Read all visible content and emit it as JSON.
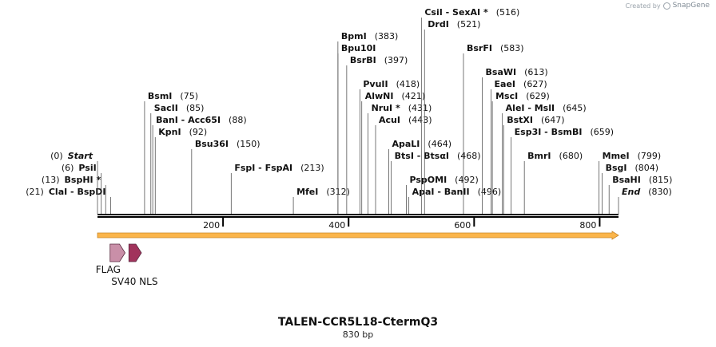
{
  "credit": {
    "prefix": "Created by",
    "brand": "SnapGene"
  },
  "title": "TALEN-CCR5L18-CtermQ3",
  "length_label": "830 bp",
  "sequence_length": 830,
  "ruler_ticks": [
    200,
    400,
    600,
    800
  ],
  "colors": {
    "orf_fill": "#fbb54a",
    "flag_fill": "#c98fa8",
    "sv40_fill": "#a1335c",
    "line": "#000000"
  },
  "sites": [
    {
      "name": "ClaI",
      "pos": 21,
      "sep": " - ",
      "name2": "BspDI",
      "paren_pos": "(21)",
      "side": "left",
      "row": 0
    },
    {
      "name": "BspHI *",
      "pos": 13,
      "paren_pos": "(13)",
      "side": "left",
      "row": 1
    },
    {
      "name": "PsiI",
      "pos": 6,
      "paren_pos": "(6)",
      "side": "left",
      "row": 2
    },
    {
      "name": "Start",
      "pos": 0,
      "paren_pos": "(0)",
      "side": "left",
      "row": 3,
      "italic": true
    },
    {
      "name": "BsmI",
      "pos": 75,
      "paren_pos": "(75)",
      "side": "right",
      "row": 8
    },
    {
      "name": "SacII",
      "pos": 85,
      "paren_pos": "(85)",
      "side": "right",
      "row": 7
    },
    {
      "name": "BanI",
      "pos": 88,
      "sep": " - ",
      "name2": "Acc65I",
      "paren_pos": "(88)",
      "side": "right",
      "row": 6
    },
    {
      "name": "KpnI",
      "pos": 92,
      "paren_pos": "(92)",
      "side": "right",
      "row": 5
    },
    {
      "name": "Bsu36I",
      "pos": 150,
      "paren_pos": "(150)",
      "side": "right",
      "row": 4
    },
    {
      "name": "FspI",
      "pos": 213,
      "sep": " - ",
      "name2": "FspAI",
      "paren_pos": "(213)",
      "side": "right",
      "row": 2
    },
    {
      "name": "MfeI",
      "pos": 312,
      "paren_pos": "(312)",
      "side": "right",
      "row": 0
    },
    {
      "name": "BpmI",
      "pos": 383,
      "paren_pos": "(383)",
      "side": "right",
      "row": 13
    },
    {
      "name": "Bpu10I",
      "pos": 383,
      "paren_pos": "",
      "side": "right",
      "row": 12
    },
    {
      "name": "BsrBI",
      "pos": 397,
      "paren_pos": "(397)",
      "side": "right",
      "row": 11
    },
    {
      "name": "PvuII",
      "pos": 418,
      "paren_pos": "(418)",
      "side": "right",
      "row": 9
    },
    {
      "name": "AlwNI",
      "pos": 421,
      "paren_pos": "(421)",
      "side": "right",
      "row": 8
    },
    {
      "name": "NruI *",
      "pos": 431,
      "paren_pos": "(431)",
      "side": "right",
      "row": 7
    },
    {
      "name": "AcuI",
      "pos": 443,
      "paren_pos": "(443)",
      "side": "right",
      "row": 6
    },
    {
      "name": "ApaLI",
      "pos": 464,
      "paren_pos": "(464)",
      "side": "right",
      "row": 4
    },
    {
      "name": "BtsI",
      "pos": 468,
      "sep": " - ",
      "name2": "BtsαI",
      "paren_pos": "(468)",
      "side": "right",
      "row": 3
    },
    {
      "name": "PspOMI",
      "pos": 492,
      "paren_pos": "(492)",
      "side": "right",
      "row": 1
    },
    {
      "name": "ApaI",
      "pos": 496,
      "sep": " - ",
      "name2": "BanII",
      "paren_pos": "(496)",
      "side": "right",
      "row": 0
    },
    {
      "name": "CsiI",
      "pos": 516,
      "sep": " - ",
      "name2": "SexAI *",
      "paren_pos": "(516)",
      "side": "right",
      "row": 15
    },
    {
      "name": "DrdI",
      "pos": 521,
      "paren_pos": "(521)",
      "side": "right",
      "row": 14
    },
    {
      "name": "BsrFI",
      "pos": 583,
      "paren_pos": "(583)",
      "side": "right",
      "row": 12
    },
    {
      "name": "BsaWI",
      "pos": 613,
      "paren_pos": "(613)",
      "side": "right",
      "row": 10
    },
    {
      "name": "EaeI",
      "pos": 627,
      "paren_pos": "(627)",
      "side": "right",
      "row": 9
    },
    {
      "name": "MscI",
      "pos": 629,
      "paren_pos": "(629)",
      "side": "right",
      "row": 8
    },
    {
      "name": "AleI",
      "pos": 645,
      "sep": " - ",
      "name2": "MslI",
      "paren_pos": "(645)",
      "side": "right",
      "row": 7
    },
    {
      "name": "BstXI",
      "pos": 647,
      "paren_pos": "(647)",
      "side": "right",
      "row": 6
    },
    {
      "name": "Esp3I",
      "pos": 659,
      "sep": " - ",
      "name2": "BsmBI",
      "paren_pos": "(659)",
      "side": "right",
      "row": 5
    },
    {
      "name": "BmrI",
      "pos": 680,
      "paren_pos": "(680)",
      "side": "right",
      "row": 3
    },
    {
      "name": "MmeI",
      "pos": 799,
      "paren_pos": "(799)",
      "side": "right",
      "row": 3
    },
    {
      "name": "BsgI",
      "pos": 804,
      "paren_pos": "(804)",
      "side": "right",
      "row": 2
    },
    {
      "name": "BsaHI",
      "pos": 815,
      "paren_pos": "(815)",
      "side": "right",
      "row": 1
    },
    {
      "name": "End",
      "pos": 830,
      "paren_pos": "(830)",
      "side": "right",
      "row": 0,
      "italic": true
    }
  ],
  "orf": {
    "start": 0,
    "end": 830,
    "direction": "forward"
  },
  "features": [
    {
      "name": "FLAG",
      "start": 20,
      "end": 44,
      "label_dx": -18,
      "label_row": 0
    },
    {
      "name": "SV40 NLS",
      "start": 50,
      "end": 70,
      "label_dx": -22,
      "label_row": 1
    }
  ]
}
